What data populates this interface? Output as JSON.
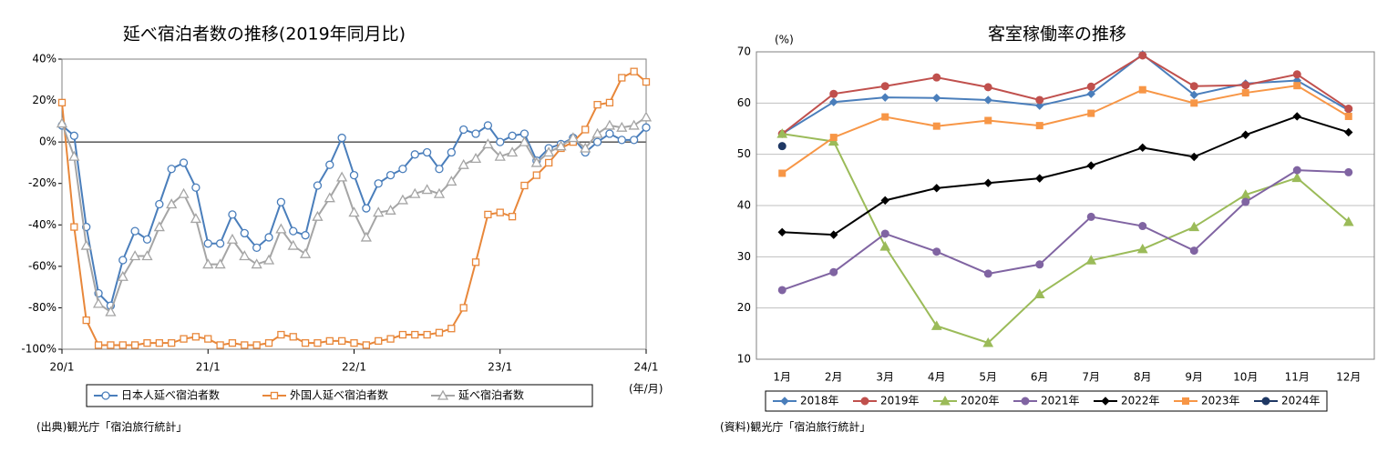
{
  "chart_data": [
    {
      "type": "line",
      "title": "延べ宿泊者数の推移(2019年同月比)",
      "x_label": "(年/月)",
      "source": "(出典)観光庁「宿泊旅行統計」",
      "categories": [
        "20/1",
        null,
        null,
        null,
        null,
        null,
        null,
        null,
        null,
        null,
        null,
        null,
        "21/1",
        null,
        null,
        null,
        null,
        null,
        null,
        null,
        null,
        null,
        null,
        null,
        "22/1",
        null,
        null,
        null,
        null,
        null,
        null,
        null,
        null,
        null,
        null,
        null,
        "23/1",
        null,
        null,
        null,
        null,
        null,
        null,
        null,
        null,
        null,
        null,
        null,
        "24/1"
      ],
      "ylim": [
        -100,
        40
      ],
      "yticks": [
        {
          "value": -100,
          "label": "-100%"
        },
        {
          "value": -80,
          "label": "-80%"
        },
        {
          "value": -60,
          "label": "-60%"
        },
        {
          "value": -40,
          "label": "-40%"
        },
        {
          "value": -20,
          "label": "-20%"
        },
        {
          "value": 0,
          "label": "0%"
        },
        {
          "value": 20,
          "label": "20%"
        },
        {
          "value": 40,
          "label": "40%"
        }
      ],
      "grid": false,
      "zero_line": true,
      "legend": "bottom",
      "series": [
        {
          "name": "日本人延べ宿泊者数",
          "color": "#4a7ebb",
          "marker": "circle-open",
          "values": [
            8,
            3,
            -41,
            -73,
            -79,
            -57,
            -43,
            -47,
            -30,
            -13,
            -10,
            -22,
            -49,
            -49,
            -35,
            -44,
            -51,
            -46,
            -29,
            -43,
            -45,
            -21,
            -11,
            2,
            -16,
            -32,
            -20,
            -16,
            -13,
            -6,
            -5,
            -13,
            -5,
            6,
            4,
            8,
            0,
            3,
            4,
            -9,
            -3,
            -1,
            2,
            -5,
            0,
            4,
            1,
            1,
            7
          ]
        },
        {
          "name": "外国人延べ宿泊者数",
          "color": "#e8873a",
          "marker": "square-open",
          "values": [
            19,
            -41,
            -86,
            -98,
            -98,
            -98,
            -98,
            -97,
            -97,
            -97,
            -95,
            -94,
            -95,
            -98,
            -97,
            -98,
            -98,
            -97,
            -93,
            -94,
            -97,
            -97,
            -96,
            -96,
            -97,
            -98,
            -96,
            -95,
            -93,
            -93,
            -93,
            -92,
            -90,
            -80,
            -58,
            -35,
            -34,
            -36,
            -21,
            -16,
            -10,
            -3,
            0,
            6,
            18,
            19,
            31,
            34,
            29
          ]
        },
        {
          "name": "延べ宿泊者数",
          "color": "#a5a5a5",
          "marker": "triangle-open",
          "values": [
            9,
            -7,
            -50,
            -78,
            -82,
            -65,
            -55,
            -55,
            -41,
            -30,
            -25,
            -37,
            -59,
            -59,
            -47,
            -55,
            -59,
            -57,
            -42,
            -50,
            -54,
            -36,
            -27,
            -17,
            -34,
            -46,
            -34,
            -33,
            -28,
            -25,
            -23,
            -25,
            -19,
            -11,
            -8,
            -1,
            -7,
            -5,
            0,
            -10,
            -5,
            -2,
            2,
            -3,
            4,
            8,
            7,
            8,
            12
          ]
        }
      ]
    },
    {
      "type": "line",
      "title": "客室稼働率の推移",
      "y_label": "(%)",
      "source": "(資料)観光庁「宿泊旅行統計」",
      "categories": [
        "1月",
        "2月",
        "3月",
        "4月",
        "5月",
        "6月",
        "7月",
        "8月",
        "9月",
        "10月",
        "11月",
        "12月"
      ],
      "ylim": [
        10,
        70
      ],
      "yticks": [
        10,
        20,
        30,
        40,
        50,
        60,
        70
      ],
      "grid": true,
      "zero_line": false,
      "legend": "bottom",
      "series": [
        {
          "name": "2018年",
          "color": "#4a7ebb",
          "marker": "diamond",
          "values": [
            54,
            60.2,
            61.1,
            61,
            60.6,
            59.5,
            61.8,
            69.5,
            61.6,
            63.8,
            64.4,
            58.6
          ]
        },
        {
          "name": "2019年",
          "color": "#c0504d",
          "marker": "circle",
          "values": [
            54,
            61.8,
            63.3,
            65,
            63.1,
            60.6,
            63.2,
            69.3,
            63.3,
            63.5,
            65.6,
            58.9
          ]
        },
        {
          "name": "2020年",
          "color": "#9bbb59",
          "marker": "triangle",
          "values": [
            54,
            52.5,
            32,
            16.5,
            13.2,
            22.7,
            29.3,
            31.5,
            35.8,
            42.1,
            45.4,
            36.8
          ]
        },
        {
          "name": "2021年",
          "color": "#8064a2",
          "marker": "circle",
          "values": [
            23.5,
            27,
            34.5,
            31,
            26.7,
            28.5,
            37.8,
            36,
            31.2,
            40.7,
            46.9,
            46.5
          ]
        },
        {
          "name": "2022年",
          "color": "#000000",
          "marker": "diamond",
          "values": [
            34.8,
            34.3,
            41,
            43.4,
            44.4,
            45.3,
            47.8,
            51.3,
            49.5,
            53.8,
            57.4,
            54.3
          ]
        },
        {
          "name": "2023年",
          "color": "#f79646",
          "marker": "square",
          "values": [
            46.3,
            53.3,
            57.3,
            55.5,
            56.6,
            55.6,
            58,
            62.6,
            60,
            62,
            63.4,
            57.4
          ]
        },
        {
          "name": "2024年",
          "color": "#1f3864",
          "marker": "circle",
          "values": [
            51.6,
            null,
            null,
            null,
            null,
            null,
            null,
            null,
            null,
            null,
            null,
            null
          ]
        }
      ]
    }
  ]
}
